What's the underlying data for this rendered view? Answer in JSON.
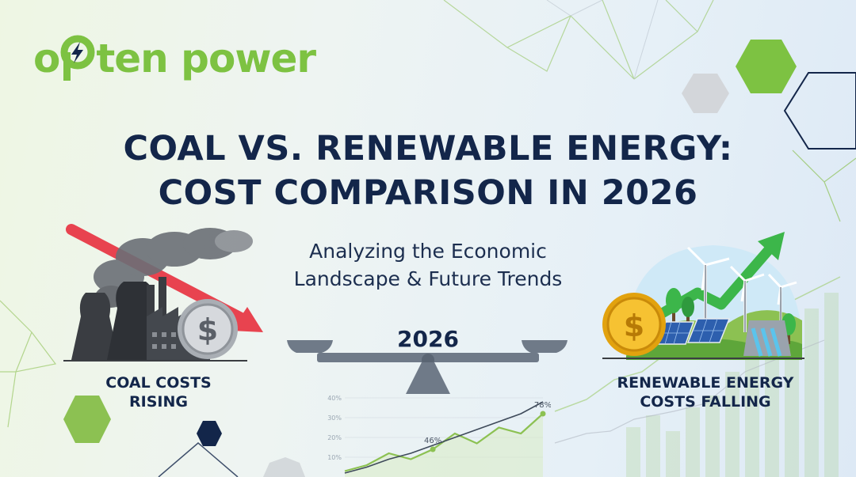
{
  "brand": {
    "name": "opten power",
    "name_part1": "o",
    "name_part2": "ten power",
    "logo_icon": "lightning-bolt-icon"
  },
  "title": {
    "line1": "COAL VS. RENEWABLE ENERGY:",
    "line2": "COST COMPARISON IN 2026"
  },
  "subtitle": {
    "line1": "Analyzing the Economic",
    "line2": "Landscape & Future Trends"
  },
  "scale": {
    "year": "2026"
  },
  "coal": {
    "caption_line1": "COAL COSTS",
    "caption_line2": "RISING",
    "trend_icon": "red-down-arrow-icon",
    "coin_symbol": "$"
  },
  "renewable": {
    "caption_line1": "RENEWABLE ENERGY",
    "caption_line2": "COSTS FALLING",
    "trend_icon": "green-up-arrow-icon",
    "coin_symbol": "$"
  },
  "colors": {
    "brand_green": "#7dc242",
    "navy": "#13264a",
    "coal_red": "#e8434f",
    "coin_gold": "#f3b417"
  },
  "chart_data": {
    "type": "line",
    "ytick_labels": [
      "40%",
      "30%",
      "20%",
      "10%"
    ],
    "ylim": [
      0,
      40
    ],
    "series": [
      {
        "values": [
          3,
          6,
          12,
          9,
          14,
          22,
          17,
          25,
          22,
          32
        ]
      },
      {
        "values": [
          2,
          5,
          9,
          12,
          16,
          20,
          24,
          28,
          32,
          38
        ]
      }
    ],
    "point_labels": [
      {
        "text": "46%"
      },
      {
        "text": "78%"
      }
    ]
  }
}
